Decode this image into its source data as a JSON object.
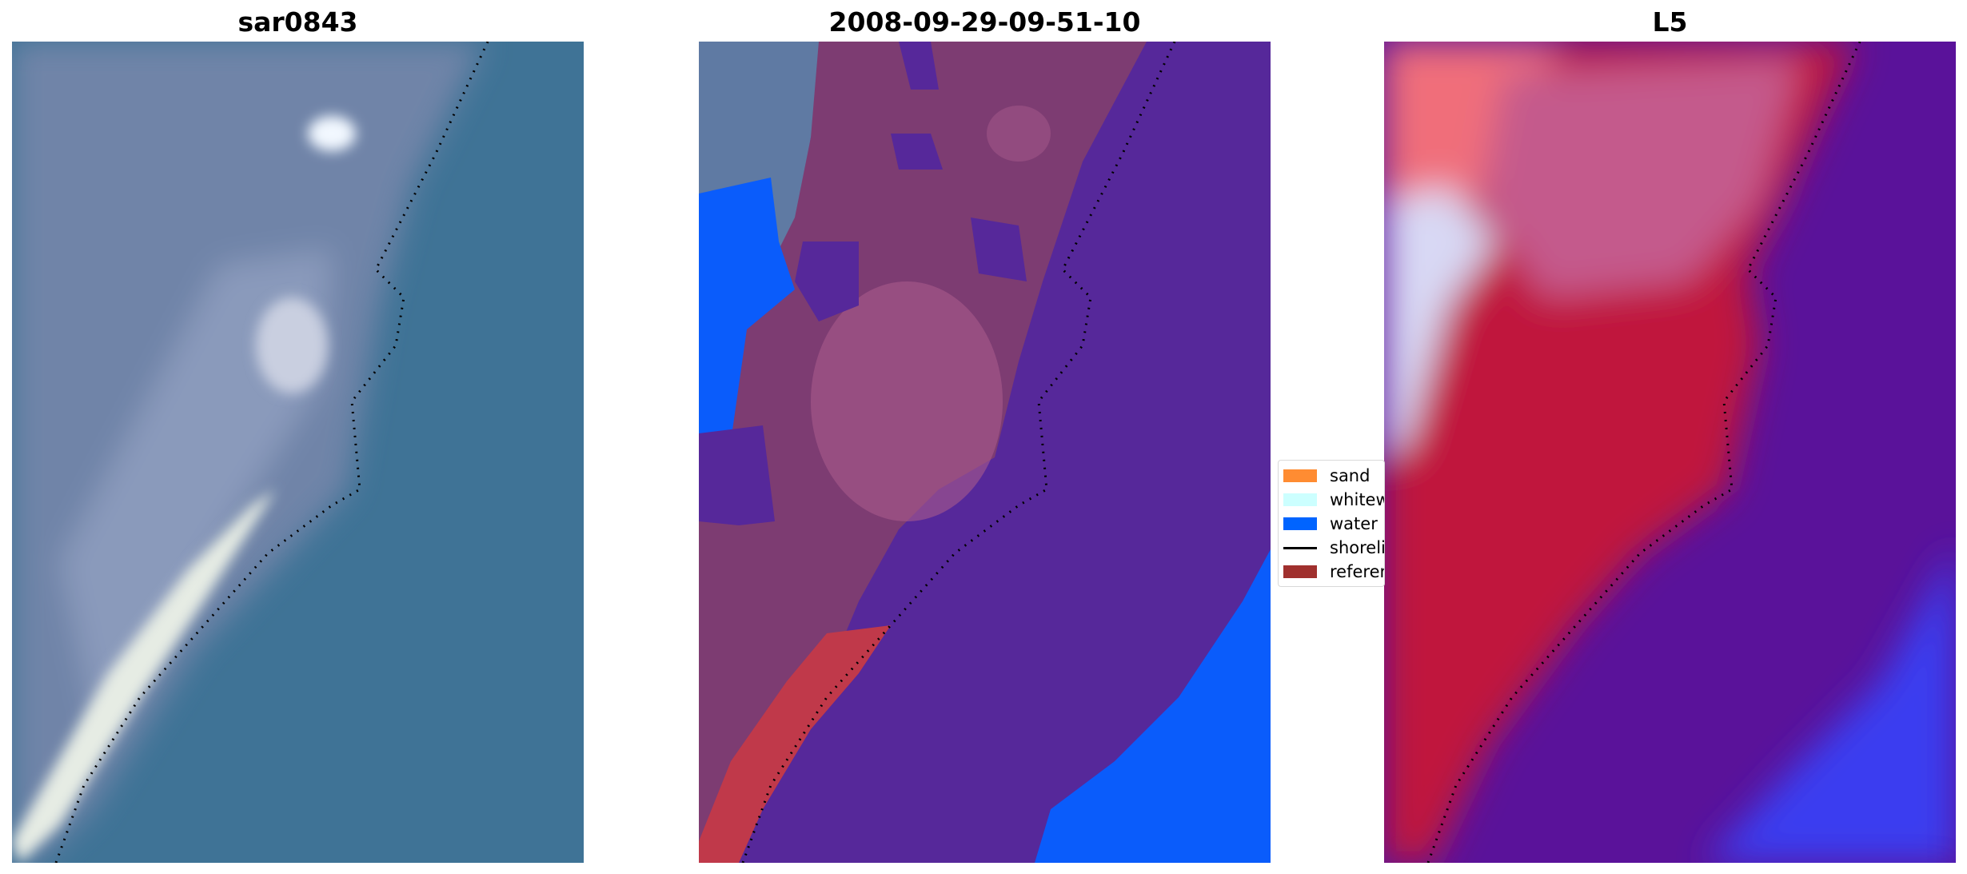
{
  "panels": [
    {
      "title": "sar0843"
    },
    {
      "title": "2008-09-29-09-51-10"
    },
    {
      "title": "L5"
    }
  ],
  "legend": {
    "items": [
      {
        "label": "sand",
        "color": "#ff8c32",
        "kind": "patch"
      },
      {
        "label": "whitewater",
        "color": "#ccffff",
        "kind": "patch"
      },
      {
        "label": "water",
        "color": "#0064ff",
        "kind": "patch"
      },
      {
        "label": "shoreline",
        "color": "#000000",
        "kind": "line"
      },
      {
        "label": "reference shoreline",
        "color": "#a0302e",
        "kind": "patch"
      }
    ]
  },
  "colors": {
    "rgb_water": "#3f7396",
    "rgb_land": "#6f84a8",
    "rgb_surf": "#e6ece4",
    "class_land": "#7d3c72",
    "class_land_light": "#a85a8c",
    "class_water_dark": "#56289a",
    "class_water": "#0a5cfb",
    "class_sand_red": "#c0394a",
    "mndwi_red": "#c0143c",
    "mndwi_purple": "#5a129a",
    "mndwi_blue": "#3a3cf0",
    "mndwi_pink": "#f06e7a"
  }
}
